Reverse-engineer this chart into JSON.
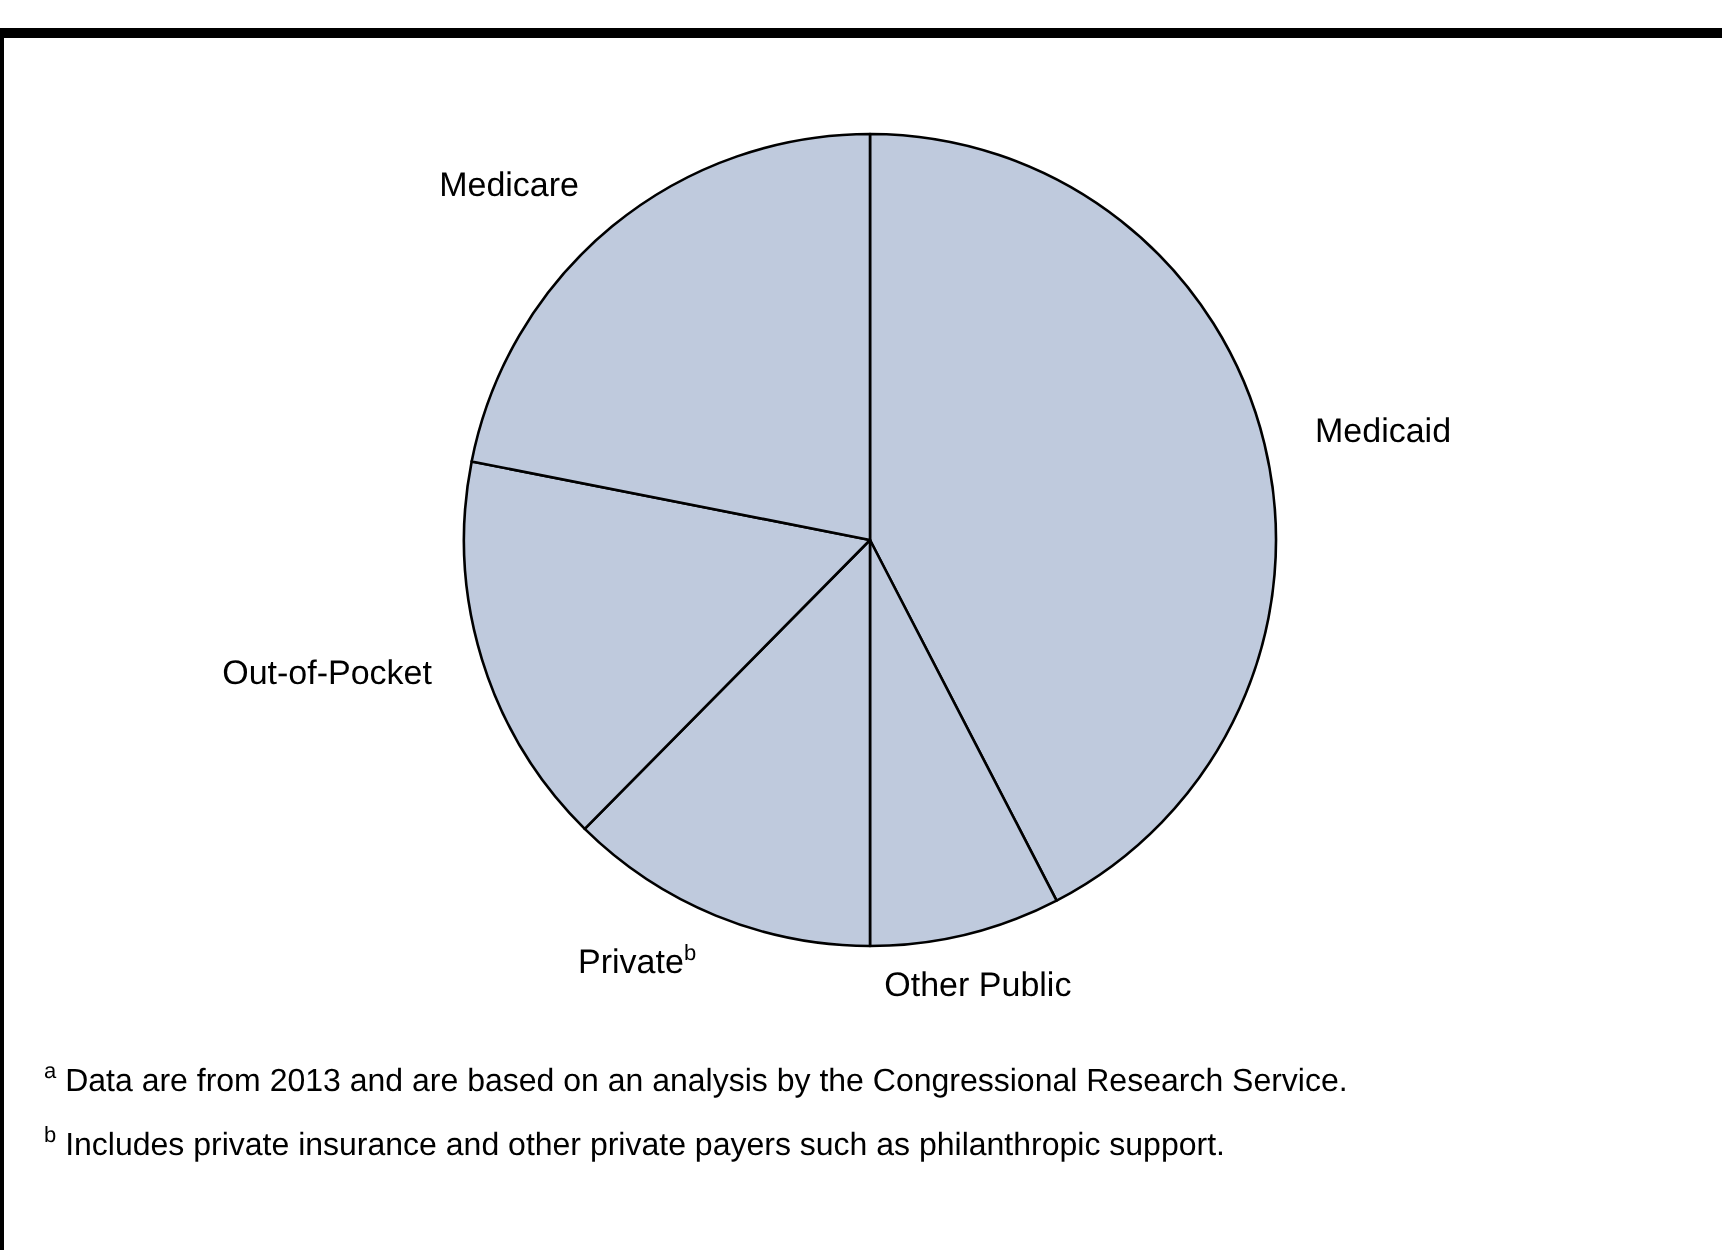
{
  "chart_data": {
    "type": "pie",
    "categories": [
      "Medicaid",
      "Other Public",
      "Private$^{b}$",
      "Out-of-Pocket",
      "Medicare"
    ],
    "values": [
      42.4,
      7.6,
      12.4,
      15.7,
      21.9
    ],
    "colors": [
      "#bfcadd",
      "#bfcadd",
      "#bfcadd",
      "#bfcadd",
      "#bfcadd"
    ],
    "legend": false,
    "annotations": [
      "$^{a}$ Data are from 2013 and are based on an analysis by the Congressional Research Service.",
      "$^{b}$ Includes private insurance and other private payers such as philanthropic support."
    ]
  }
}
